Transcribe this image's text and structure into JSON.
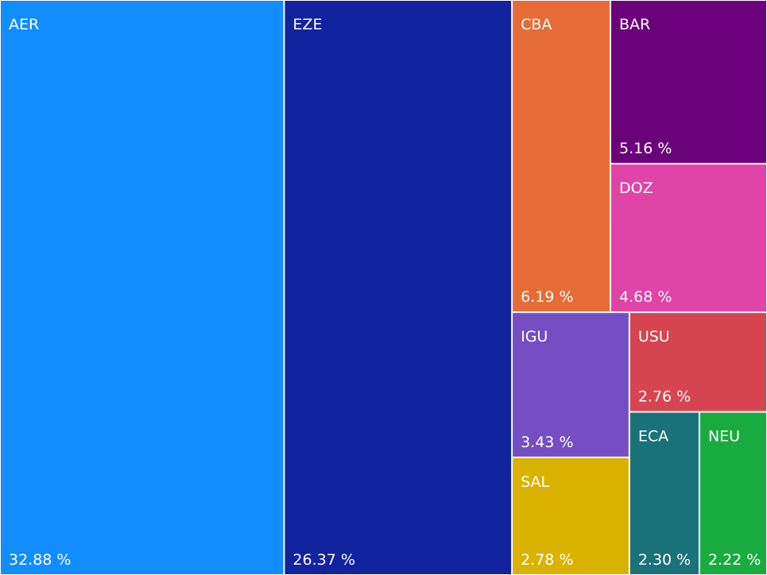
{
  "chart_data": {
    "type": "treemap",
    "categories": [
      "AER",
      "EZE",
      "CBA",
      "BAR",
      "DOZ",
      "IGU",
      "SAL",
      "USU",
      "ECA",
      "NEU"
    ],
    "values": [
      32.88,
      26.37,
      6.19,
      5.16,
      4.68,
      3.43,
      2.78,
      2.76,
      2.3,
      2.22
    ],
    "value_labels": [
      "32.88 %",
      "26.37 %",
      "6.19 %",
      "5.16 %",
      "4.68 %",
      "3.43 %",
      "2.78 %",
      "2.76 %",
      "2.30 %",
      "2.22 %"
    ],
    "colors": [
      "#118dff",
      "#12239e",
      "#e66c37",
      "#6b007b",
      "#e044a7",
      "#744ec2",
      "#d9b300",
      "#d64550",
      "#197278",
      "#1aab40"
    ]
  }
}
